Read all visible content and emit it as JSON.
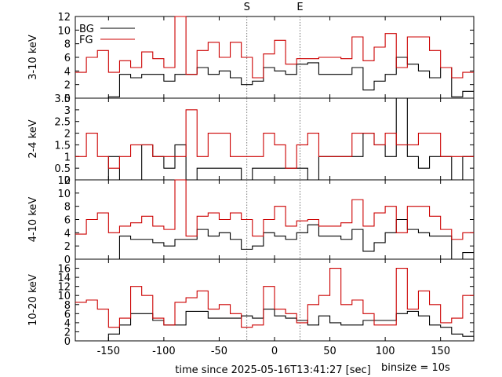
{
  "chart_data": {
    "type": "line",
    "xlabel": "time since 2025-05-16T13:41:27 [sec]",
    "note": "binsize = 10s",
    "markers": [
      {
        "label": "S",
        "x": -25
      },
      {
        "label": "E",
        "x": 23
      }
    ],
    "xlim": [
      -180,
      180
    ],
    "xticks": [
      -150,
      -100,
      -50,
      0,
      50,
      100,
      150
    ],
    "legend": {
      "position": "top-left",
      "entries": [
        "BG",
        "FG"
      ]
    },
    "colors": {
      "BG": "#000000",
      "FG": "#cc0000",
      "markers": "#555555"
    },
    "bin_edges": [
      -180,
      -170,
      -160,
      -150,
      -140,
      -130,
      -120,
      -110,
      -100,
      -90,
      -80,
      -70,
      -60,
      -50,
      -40,
      -30,
      -20,
      -10,
      0,
      10,
      20,
      30,
      40,
      50,
      60,
      70,
      80,
      90,
      100,
      110,
      120,
      130,
      140,
      150,
      160,
      170,
      180
    ],
    "panels": [
      {
        "ylabel": "3-10 keV",
        "ylim": [
          0,
          12
        ],
        "yticks": [
          0,
          2,
          4,
          6,
          8,
          10,
          12
        ],
        "series": [
          {
            "name": "BG",
            "values": [
              null,
              null,
              0,
              0.2,
              3.5,
              3,
              3.5,
              3.5,
              2.5,
              3.5,
              3.5,
              4.5,
              3.5,
              4,
              3,
              2,
              2.5,
              4.5,
              4,
              3.5,
              5,
              5.2,
              3.5,
              3.5,
              3.5,
              4.5,
              1.2,
              2.5,
              3.5,
              6,
              5,
              4,
              3,
              4.5,
              0.2,
              1
            ]
          },
          {
            "name": "FG",
            "values": [
              3.8,
              6,
              7,
              3.8,
              5.5,
              4.5,
              6.8,
              5.8,
              4.5,
              12,
              3.5,
              7,
              8.2,
              6,
              8.2,
              6,
              3,
              6.5,
              8.5,
              5,
              5.8,
              5.8,
              6,
              6,
              5.8,
              9,
              5.5,
              7.5,
              9.5,
              4.5,
              9,
              9,
              7,
              4.5,
              3,
              3.8
            ]
          }
        ]
      },
      {
        "ylabel": "2-4 keV",
        "ylim": [
          0,
          3.5
        ],
        "yticks": [
          0,
          0.5,
          1,
          1.5,
          2,
          2.5,
          3,
          3.5
        ],
        "series": [
          {
            "name": "BG",
            "values": [
              null,
              null,
              0,
              1,
              0,
              0,
              1.5,
              1,
              0.5,
              1.5,
              0,
              0.5,
              0.5,
              0.5,
              0.5,
              0,
              0.5,
              0.5,
              0.5,
              0.5,
              0.5,
              0,
              1,
              1,
              1,
              1,
              2,
              1.5,
              1,
              3.5,
              1,
              0.5,
              1,
              1,
              0,
              1
            ]
          },
          {
            "name": "FG",
            "values": [
              1,
              2,
              1,
              0.5,
              1,
              1.5,
              1.5,
              1,
              1,
              1,
              3,
              1,
              2,
              2,
              1,
              1,
              1,
              2,
              1.5,
              0.5,
              1.5,
              2,
              1,
              1,
              1,
              2,
              2,
              1.5,
              2,
              1.5,
              1.5,
              2,
              2,
              1,
              1,
              1
            ]
          }
        ]
      },
      {
        "ylabel": "4-10 keV",
        "ylim": [
          0,
          12
        ],
        "yticks": [
          0,
          2,
          4,
          6,
          8,
          10,
          12
        ],
        "series": [
          {
            "name": "BG",
            "values": [
              null,
              null,
              0,
              0,
              3.5,
              3,
              3,
              2.5,
              2,
              3,
              3,
              4.5,
              3.5,
              4,
              3,
              1.5,
              2,
              4,
              3.5,
              3,
              4,
              5.2,
              3.5,
              3.5,
              3,
              4.5,
              1.2,
              2.5,
              4,
              6,
              4.5,
              4,
              3.5,
              3.5,
              0,
              1
            ]
          },
          {
            "name": "FG",
            "values": [
              3.8,
              6,
              7,
              4,
              5,
              5.5,
              6.5,
              5,
              4.5,
              12,
              3.5,
              6.5,
              7,
              6,
              7,
              6,
              3.5,
              6,
              8,
              5,
              5.8,
              6,
              5,
              5,
              5.5,
              9,
              5,
              7,
              8,
              4,
              8,
              8,
              6.5,
              4.5,
              3,
              4
            ]
          }
        ]
      },
      {
        "ylabel": "10-20 keV",
        "ylim": [
          0,
          18
        ],
        "yticks": [
          0,
          2,
          4,
          6,
          8,
          10,
          12,
          14,
          16
        ],
        "series": [
          {
            "name": "BG",
            "values": [
              null,
              null,
              0,
              1.5,
              3.5,
              6,
              6,
              4.5,
              3.5,
              3.5,
              6.5,
              6.5,
              5,
              5,
              5,
              5.5,
              5,
              7,
              5.5,
              5,
              4.5,
              3.5,
              5.5,
              4,
              3.5,
              3.5,
              4.5,
              4.5,
              4.5,
              6,
              6.5,
              5.5,
              3.5,
              3,
              1.5,
              1
            ]
          },
          {
            "name": "FG",
            "values": [
              8.5,
              9,
              7,
              3,
              5,
              12,
              10,
              5,
              3.5,
              8.5,
              9.5,
              11,
              7,
              8,
              6,
              3,
              3.5,
              12,
              7,
              6,
              4,
              8,
              10,
              16,
              8,
              9,
              6,
              3.5,
              3.5,
              16,
              7,
              11,
              8,
              4,
              5,
              10
            ]
          }
        ]
      }
    ]
  }
}
